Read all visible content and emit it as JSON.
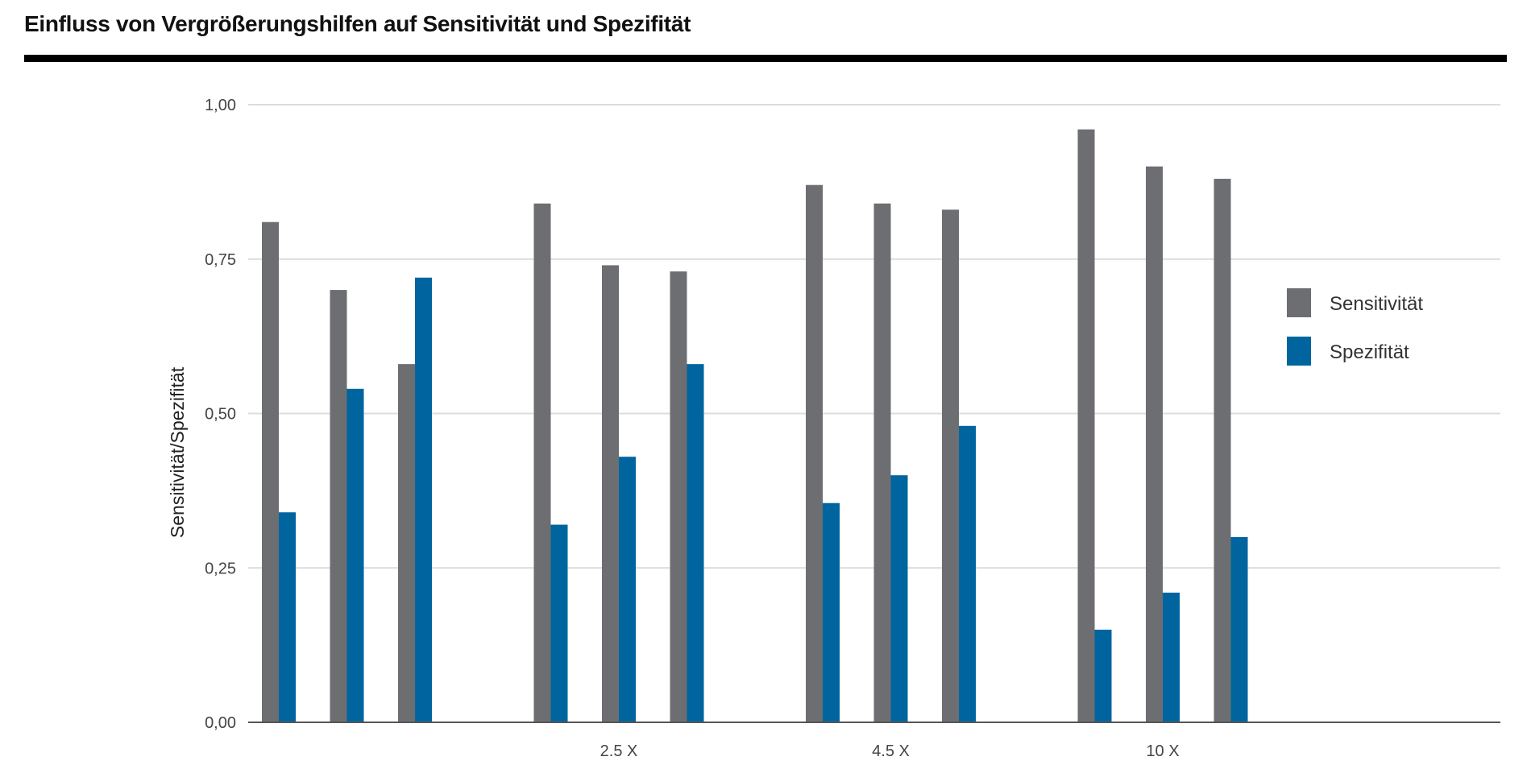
{
  "chart_data": {
    "type": "bar",
    "title": "Einfluss von Vergrößerungshilfen auf Sensitivität und Spezifität",
    "ylabel": "Sensitivität/Spezifität",
    "xlabel": "",
    "ylim": [
      0,
      1
    ],
    "yticks": [
      0,
      0.25,
      0.5,
      0.75,
      1
    ],
    "ytick_labels": [
      "0,00",
      "0,25",
      "0,50",
      "0,75",
      "1,00"
    ],
    "grid": true,
    "legend_position": "right",
    "groups": [
      {
        "label": "",
        "pairs": [
          {
            "sensitivitaet": 0.81,
            "spezifitaet": 0.34
          },
          {
            "sensitivitaet": 0.7,
            "spezifitaet": 0.54
          },
          {
            "sensitivitaet": 0.58,
            "spezifitaet": 0.72
          }
        ]
      },
      {
        "label": "2.5 X",
        "pairs": [
          {
            "sensitivitaet": 0.84,
            "spezifitaet": 0.32
          },
          {
            "sensitivitaet": 0.74,
            "spezifitaet": 0.43
          },
          {
            "sensitivitaet": 0.73,
            "spezifitaet": 0.58
          }
        ]
      },
      {
        "label": "4.5 X",
        "pairs": [
          {
            "sensitivitaet": 0.87,
            "spezifitaet": 0.355
          },
          {
            "sensitivitaet": 0.84,
            "spezifitaet": 0.4
          },
          {
            "sensitivitaet": 0.83,
            "spezifitaet": 0.48
          }
        ]
      },
      {
        "label": "10 X",
        "pairs": [
          {
            "sensitivitaet": 0.96,
            "spezifitaet": 0.15
          },
          {
            "sensitivitaet": 0.9,
            "spezifitaet": 0.21
          },
          {
            "sensitivitaet": 0.88,
            "spezifitaet": 0.3
          }
        ]
      }
    ],
    "series": [
      {
        "key": "sensitivitaet",
        "name": "Sensitivität",
        "color": "#6d6e71"
      },
      {
        "key": "spezifitaet",
        "name": "Spezifität",
        "color": "#00659e"
      }
    ]
  }
}
